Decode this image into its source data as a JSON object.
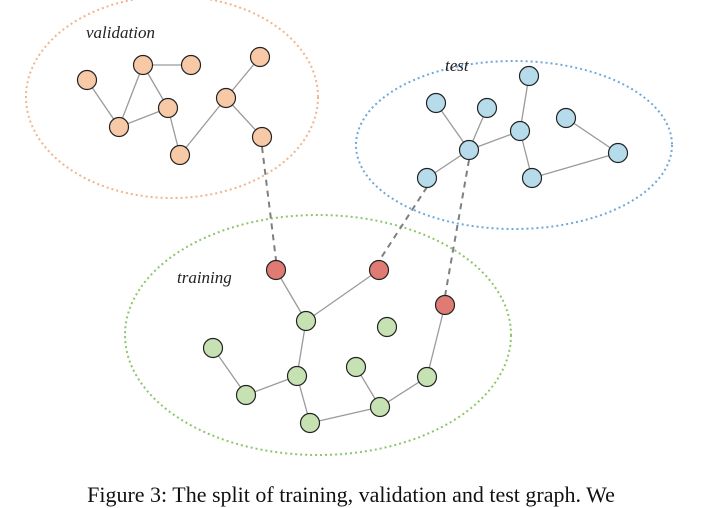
{
  "regions": {
    "validation": {
      "label": "validation",
      "color": "#f2b48a",
      "node_fill": "#f8c9a6"
    },
    "test": {
      "label": "test",
      "color": "#6fa8dc",
      "node_fill": "#b6dcec"
    },
    "training": {
      "label": "training",
      "color": "#8cc66a",
      "node_fill": "#c7e2b2"
    }
  },
  "link_node_fill": "#e07b74",
  "caption": "Figure 3: The split of training, validation and test graph. We"
}
